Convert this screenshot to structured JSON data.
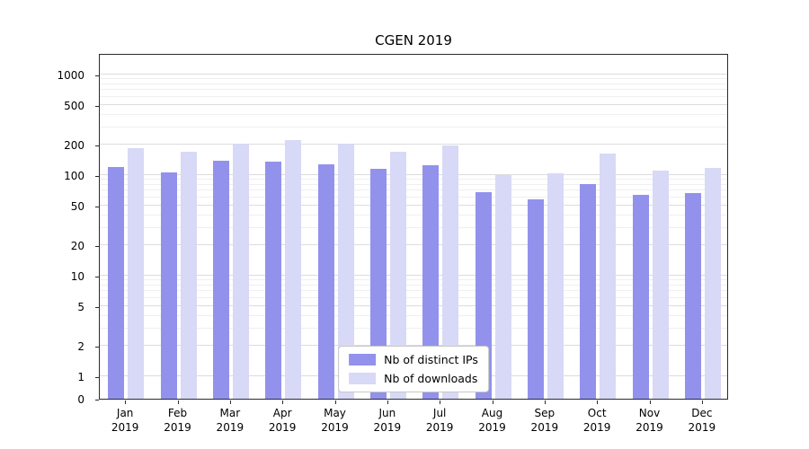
{
  "title": "CGEN 2019",
  "chart_data": {
    "type": "bar",
    "title": "CGEN 2019",
    "categories": [
      "Jan 2019",
      "Feb 2019",
      "Mar 2019",
      "Apr 2019",
      "May 2019",
      "Jun 2019",
      "Jul 2019",
      "Aug 2019",
      "Sep 2019",
      "Oct 2019",
      "Nov 2019",
      "Dec 2019"
    ],
    "series": [
      {
        "key": "distinct-ips",
        "name": "Nb of distinct IPs",
        "color": "#9292ec",
        "values": [
          120,
          107,
          140,
          135,
          128,
          115,
          125,
          68,
          58,
          82,
          63,
          66
        ]
      },
      {
        "key": "downloads",
        "name": "Nb of downloads",
        "color": "#d8d8f7",
        "values": [
          185,
          170,
          205,
          225,
          205,
          172,
          197,
          100,
          104,
          165,
          112,
          118
        ]
      }
    ],
    "yscale": "symlog",
    "yticks": [
      0,
      1,
      2,
      5,
      10,
      20,
      50,
      100,
      200,
      500,
      1000
    ],
    "ylim": [
      0,
      1000
    ],
    "grid": true,
    "legend_position": "lower center"
  }
}
